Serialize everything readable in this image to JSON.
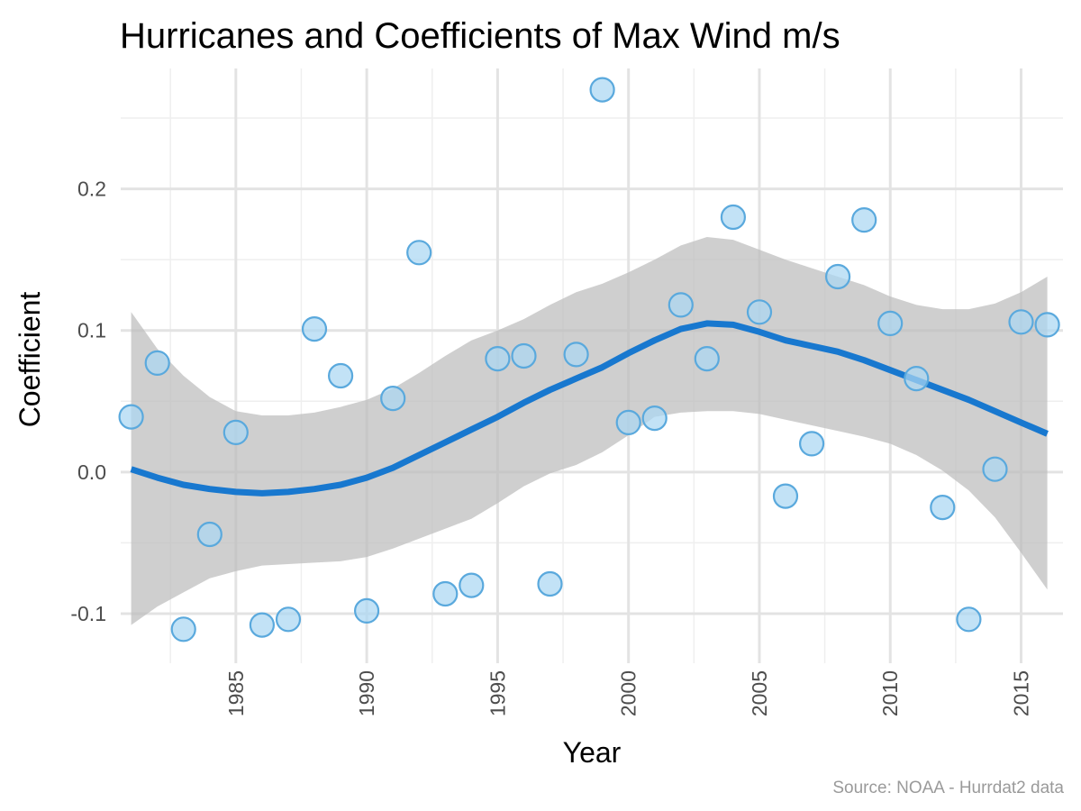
{
  "chart_data": {
    "type": "scatter",
    "title": "Hurricanes and Coefficients of Max Wind m/s",
    "xlabel": "Year",
    "ylabel": "Coefficient",
    "caption": "Source: NOAA - Hurrdat2 data",
    "xlim": [
      1980.6,
      2016.6
    ],
    "ylim": [
      -0.135,
      0.285
    ],
    "x_ticks": [
      1985,
      1990,
      1995,
      2000,
      2005,
      2010,
      2015
    ],
    "x_tick_labels": [
      "1985",
      "1990",
      "1995",
      "2000",
      "2005",
      "2010",
      "2015"
    ],
    "y_ticks": [
      -0.1,
      0.0,
      0.1,
      0.2
    ],
    "y_tick_labels": [
      "-0.1",
      "0.0",
      "0.1",
      "0.2"
    ],
    "grid": true,
    "legend": "none",
    "point_color": "#aad7f2",
    "point_stroke": "#5aa9dd",
    "line_color": "#1878cf",
    "band_color": "#bdbdbd",
    "points": {
      "x": [
        1981,
        1982,
        1983,
        1984,
        1985,
        1986,
        1987,
        1988,
        1989,
        1990,
        1991,
        1992,
        1993,
        1994,
        1995,
        1996,
        1997,
        1998,
        1999,
        2000,
        2001,
        2002,
        2003,
        2004,
        2005,
        2006,
        2007,
        2008,
        2009,
        2010,
        2011,
        2012,
        2013,
        2014,
        2015,
        2016
      ],
      "y": [
        0.039,
        0.077,
        -0.111,
        -0.044,
        0.028,
        -0.108,
        -0.104,
        0.101,
        0.068,
        -0.098,
        0.052,
        0.155,
        -0.086,
        -0.08,
        0.08,
        0.082,
        -0.079,
        0.083,
        0.27,
        0.035,
        0.038,
        0.118,
        0.08,
        0.18,
        0.113,
        -0.017,
        0.02,
        0.138,
        0.178,
        0.105,
        0.066,
        -0.025,
        -0.104,
        0.002,
        0.106,
        0.104
      ]
    },
    "smooth": {
      "x": [
        1981,
        1982,
        1983,
        1984,
        1985,
        1986,
        1987,
        1988,
        1989,
        1990,
        1991,
        1992,
        1993,
        1994,
        1995,
        1996,
        1997,
        1998,
        1999,
        2000,
        2001,
        2002,
        2003,
        2004,
        2005,
        2006,
        2007,
        2008,
        2009,
        2010,
        2011,
        2012,
        2013,
        2014,
        2015,
        2016
      ],
      "y": [
        0.002,
        -0.004,
        -0.009,
        -0.012,
        -0.014,
        -0.015,
        -0.014,
        -0.012,
        -0.009,
        -0.004,
        0.003,
        0.012,
        0.021,
        0.03,
        0.039,
        0.049,
        0.058,
        0.066,
        0.074,
        0.084,
        0.093,
        0.101,
        0.105,
        0.104,
        0.099,
        0.093,
        0.089,
        0.085,
        0.079,
        0.072,
        0.065,
        0.058,
        0.051,
        0.043,
        0.035,
        0.027
      ],
      "ymin": [
        -0.108,
        -0.095,
        -0.085,
        -0.075,
        -0.07,
        -0.066,
        -0.065,
        -0.064,
        -0.063,
        -0.06,
        -0.054,
        -0.047,
        -0.04,
        -0.033,
        -0.022,
        -0.01,
        -0.001,
        0.005,
        0.014,
        0.026,
        0.039,
        0.042,
        0.043,
        0.043,
        0.041,
        0.037,
        0.033,
        0.029,
        0.025,
        0.02,
        0.012,
        0.001,
        -0.013,
        -0.032,
        -0.057,
        -0.083
      ],
      "ymax": [
        0.113,
        0.087,
        0.068,
        0.053,
        0.043,
        0.04,
        0.04,
        0.042,
        0.046,
        0.051,
        0.059,
        0.07,
        0.082,
        0.093,
        0.1,
        0.108,
        0.118,
        0.127,
        0.133,
        0.141,
        0.15,
        0.16,
        0.166,
        0.164,
        0.157,
        0.15,
        0.144,
        0.138,
        0.132,
        0.124,
        0.118,
        0.115,
        0.115,
        0.119,
        0.127,
        0.138
      ]
    }
  }
}
